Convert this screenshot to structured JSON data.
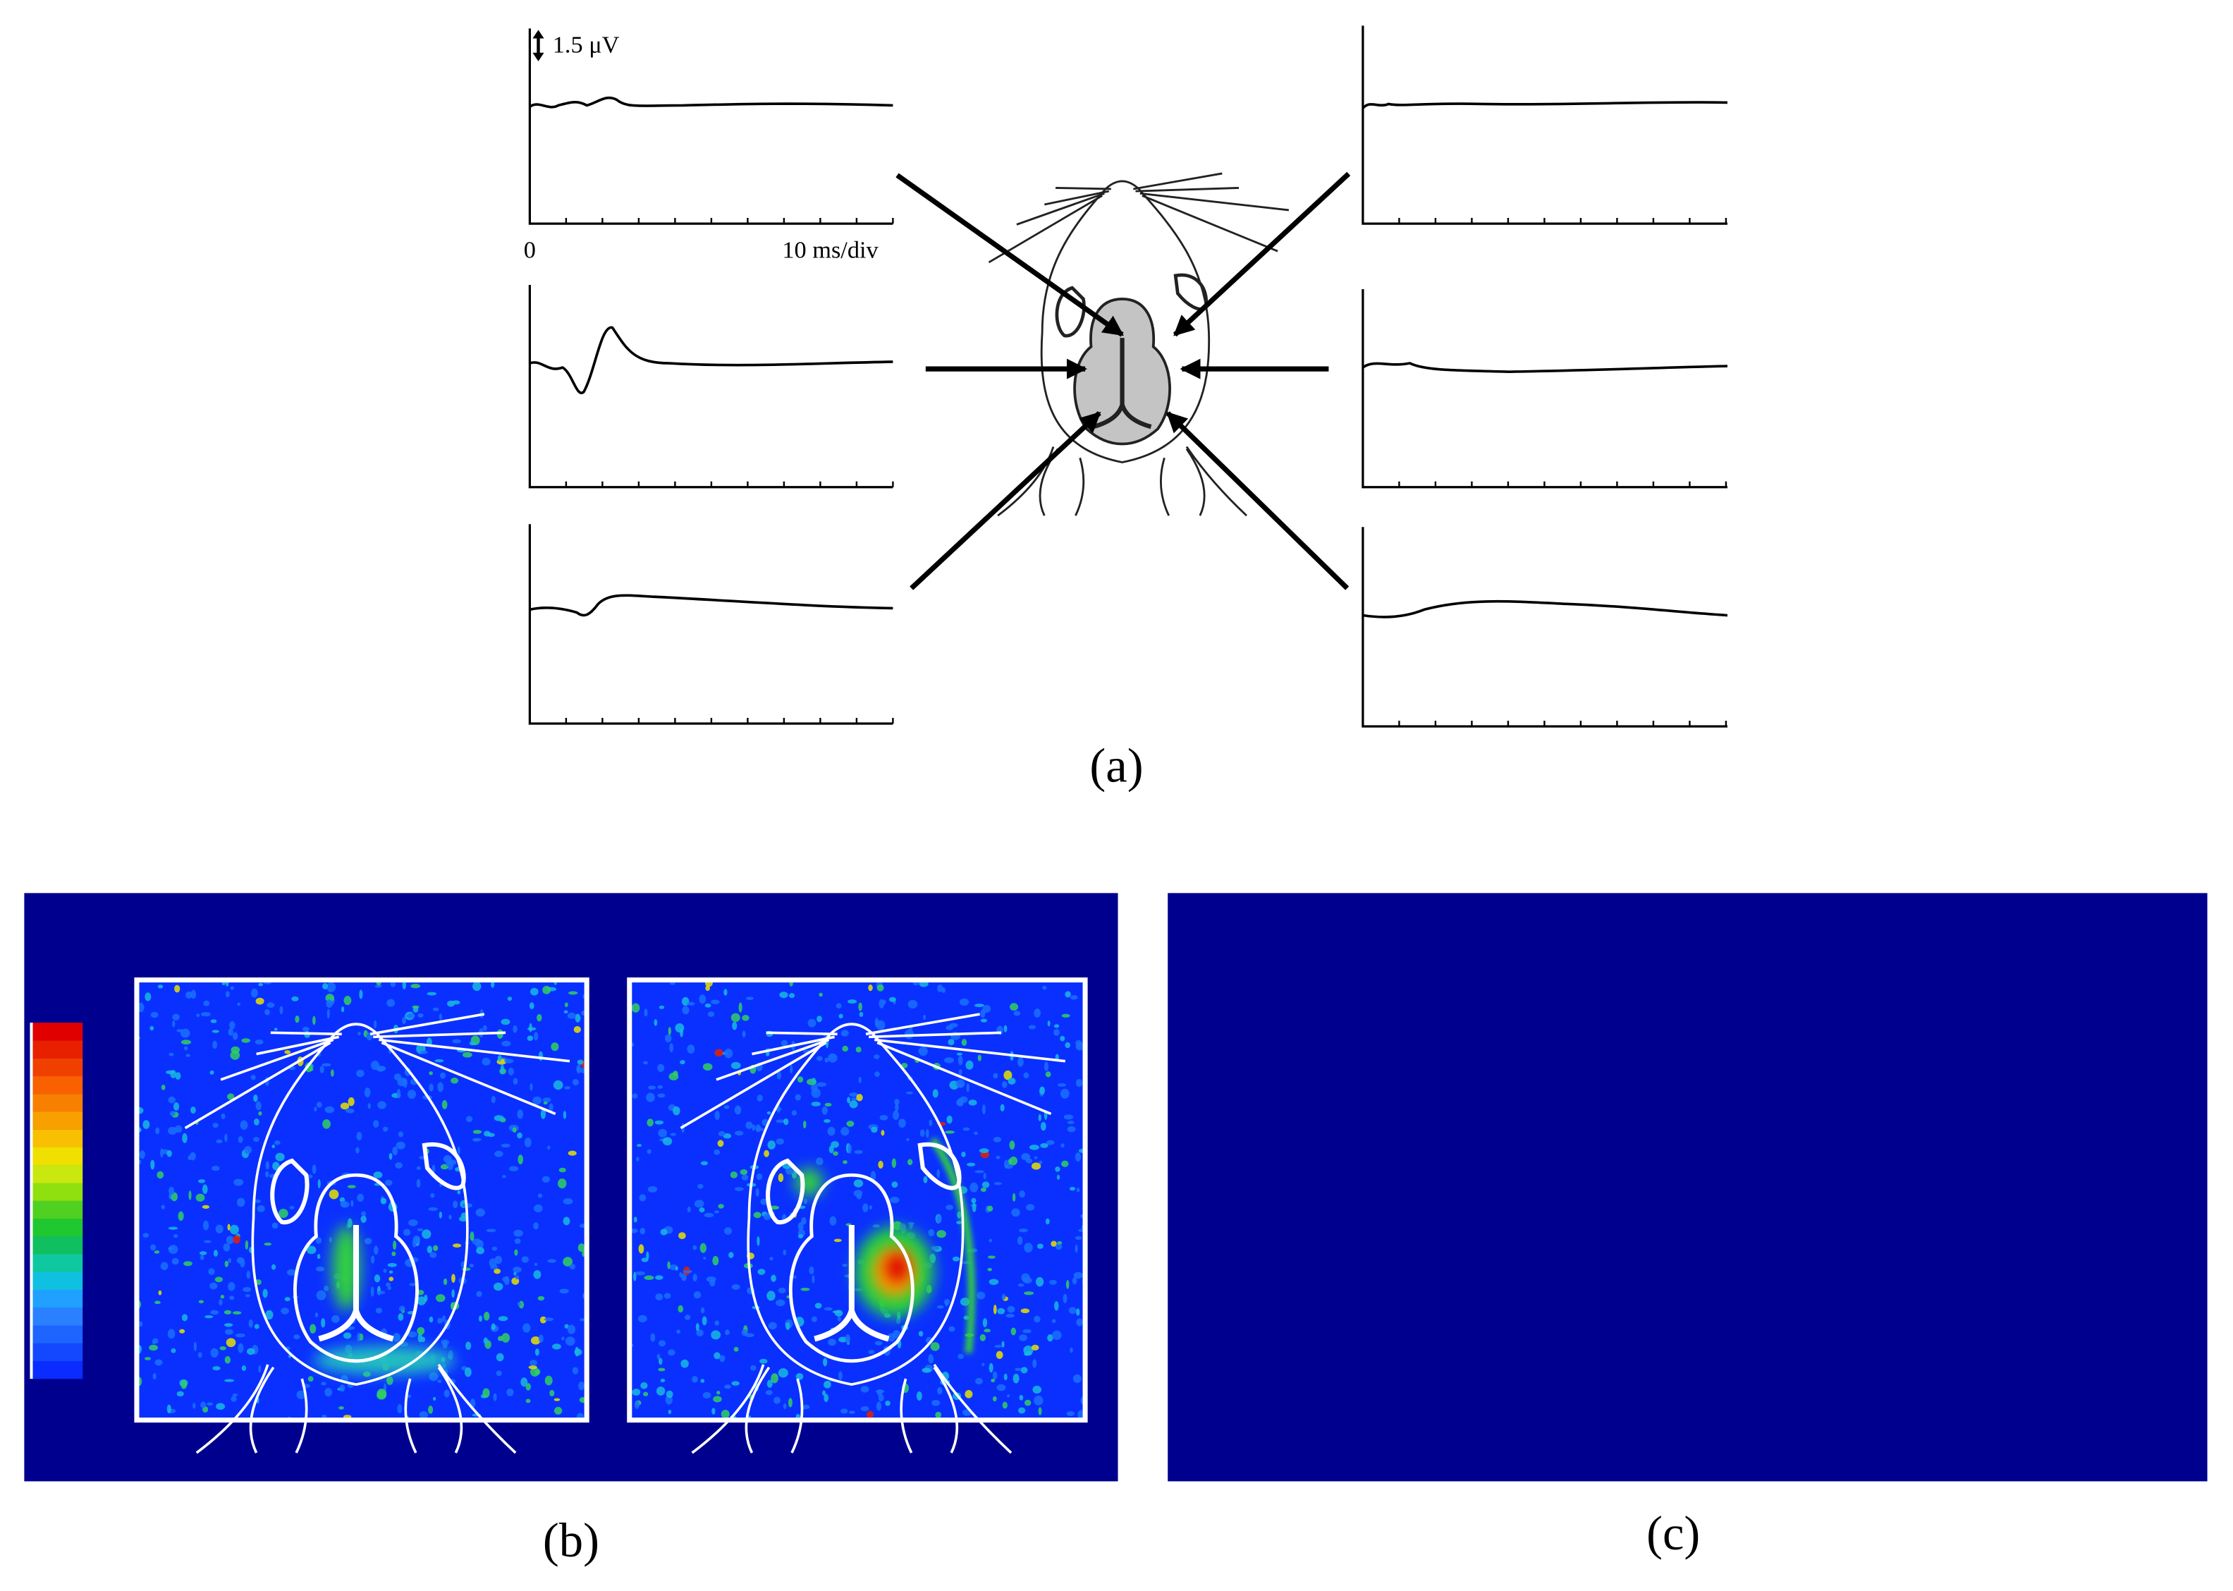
{
  "panel_a": {
    "scale_label": "1.5 μV",
    "time_origin": "0",
    "time_scale": "10 ms/div",
    "label": "(a)"
  },
  "panel_b": {
    "label": "(b)"
  },
  "panel_c": {
    "label": "(c)"
  }
}
